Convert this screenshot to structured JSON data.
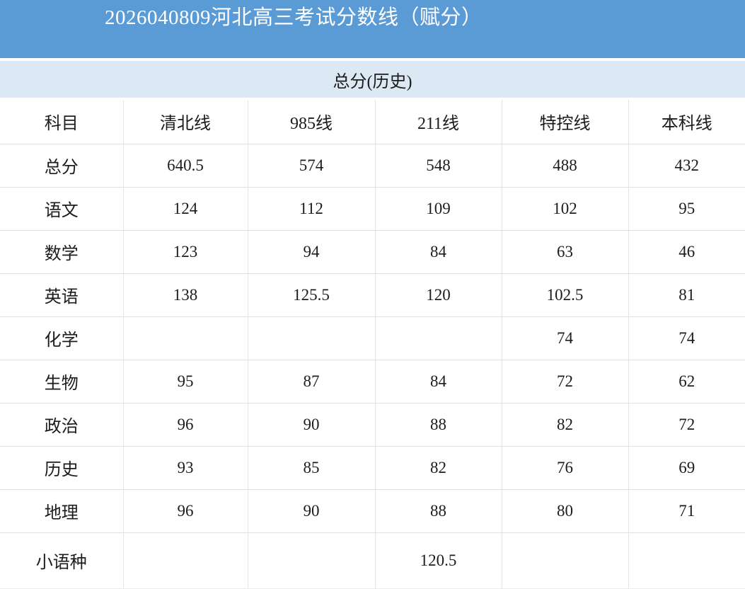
{
  "header": {
    "title": "2026040809河北高三考试分数线（赋分）"
  },
  "subheader": {
    "title": "总分(历史)"
  },
  "colors": {
    "title_bar_bg": "#5b9bd5",
    "title_bar_text": "#ffffff",
    "banner_bg": "#dce9f5",
    "table_text": "#1c1c1c",
    "grid_line": "#e0e0e0"
  },
  "table": {
    "columns": [
      "科目",
      "清北线",
      "985线",
      "211线",
      "特控线",
      "本科线"
    ],
    "rows": [
      [
        "总分",
        "640.5",
        "574",
        "548",
        "488",
        "432"
      ],
      [
        "语文",
        "124",
        "112",
        "109",
        "102",
        "95"
      ],
      [
        "数学",
        "123",
        "94",
        "84",
        "63",
        "46"
      ],
      [
        "英语",
        "138",
        "125.5",
        "120",
        "102.5",
        "81"
      ],
      [
        "化学",
        "",
        "",
        "",
        "74",
        "74"
      ],
      [
        "生物",
        "95",
        "87",
        "84",
        "72",
        "62"
      ],
      [
        "政治",
        "96",
        "90",
        "88",
        "82",
        "72"
      ],
      [
        "历史",
        "93",
        "85",
        "82",
        "76",
        "69"
      ],
      [
        "地理",
        "96",
        "90",
        "88",
        "80",
        "71"
      ],
      [
        "小语种",
        "",
        "",
        "120.5",
        "",
        ""
      ]
    ]
  }
}
